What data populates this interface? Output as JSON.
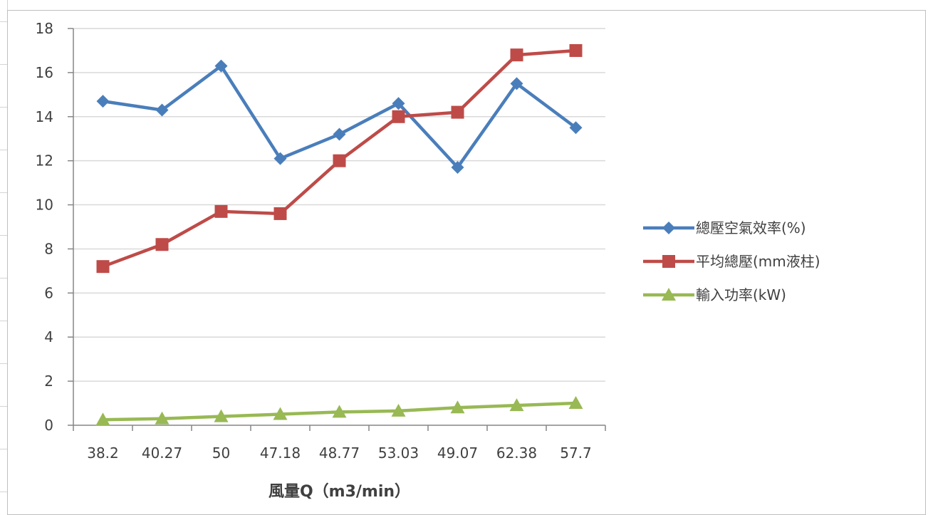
{
  "chart_data": {
    "type": "line",
    "categories": [
      "38.2",
      "40.27",
      "50",
      "47.18",
      "48.77",
      "53.03",
      "49.07",
      "62.38",
      "57.7"
    ],
    "xlabel": "風量Q（m3/min）",
    "ylabel": "",
    "ylim": [
      0,
      18
    ],
    "yticks": [
      0,
      2,
      4,
      6,
      8,
      10,
      12,
      14,
      16,
      18
    ],
    "grid": "horizontal",
    "legend": "right",
    "series": [
      {
        "name": "總壓空氣效率(%)",
        "color": "#4a7ebb",
        "marker": "diamond",
        "values": [
          14.7,
          14.3,
          16.3,
          12.1,
          13.2,
          14.6,
          11.7,
          15.5,
          13.5
        ]
      },
      {
        "name": "平均總壓(mm液柱)",
        "color": "#be4b48",
        "marker": "square",
        "values": [
          7.2,
          8.2,
          9.7,
          9.6,
          12.0,
          14.0,
          14.2,
          16.8,
          17.0
        ]
      },
      {
        "name": "輸入功率(kW)",
        "color": "#98b954",
        "marker": "triangle",
        "values": [
          0.25,
          0.3,
          0.4,
          0.5,
          0.6,
          0.65,
          0.8,
          0.9,
          1.0
        ]
      }
    ]
  }
}
